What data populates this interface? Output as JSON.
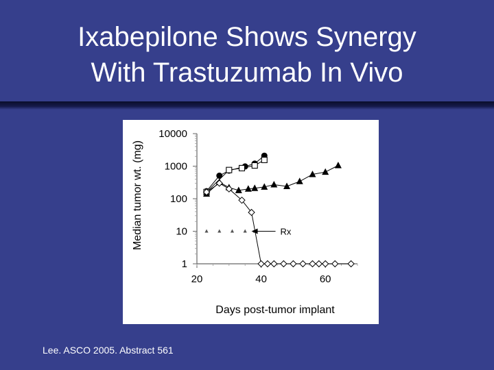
{
  "slide": {
    "title_line1": "Ixabepilone Shows Synergy",
    "title_line2": "With Trastuzumab In Vivo",
    "citation": "Lee. ASCO 2005. Abstract 561",
    "background_color": "#363F8C",
    "text_color": "#FFFFFF"
  },
  "chart_data": {
    "type": "scatter",
    "xlabel": "Days post-tumor implant",
    "ylabel": "Median tumor wt. (mg)",
    "yscale": "log",
    "ylim": [
      1,
      10000
    ],
    "xlim": [
      20,
      70
    ],
    "x_ticks": [
      "20",
      "40",
      "60"
    ],
    "y_ticks": [
      "1",
      "10",
      "100",
      "1000",
      "10000"
    ],
    "grid": false,
    "series": [
      {
        "marker": "filled-circle",
        "points": [
          [
            23,
            170
          ],
          [
            27,
            510
          ],
          [
            30,
            730
          ],
          [
            35,
            980
          ],
          [
            38,
            1200
          ],
          [
            41,
            2100
          ]
        ]
      },
      {
        "marker": "open-square",
        "points": [
          [
            23,
            160
          ],
          [
            30,
            760
          ],
          [
            34,
            870
          ],
          [
            38,
            1050
          ],
          [
            41,
            1550
          ]
        ]
      },
      {
        "marker": "filled-triangle",
        "points": [
          [
            23,
            140
          ],
          [
            27,
            320
          ],
          [
            30,
            220
          ],
          [
            33,
            180
          ],
          [
            36,
            200
          ],
          [
            38,
            210
          ],
          [
            41,
            230
          ],
          [
            44,
            270
          ],
          [
            48,
            240
          ],
          [
            52,
            340
          ],
          [
            56,
            560
          ],
          [
            60,
            660
          ],
          [
            64,
            1050
          ]
        ]
      },
      {
        "marker": "open-diamond",
        "points": [
          [
            23,
            160
          ],
          [
            27,
            300
          ],
          [
            30,
            200
          ],
          [
            34,
            90
          ],
          [
            37,
            38
          ],
          [
            40,
            1
          ],
          [
            42,
            1
          ],
          [
            44,
            1
          ],
          [
            47,
            1
          ],
          [
            50,
            1
          ],
          [
            53,
            1
          ],
          [
            56,
            1
          ],
          [
            58,
            1
          ],
          [
            60,
            1
          ],
          [
            63,
            1
          ],
          [
            68,
            1
          ]
        ]
      },
      {
        "marker": "small-triangle-dose",
        "points": [
          [
            23,
            10
          ],
          [
            27,
            10
          ],
          [
            31,
            10
          ],
          [
            35,
            10
          ],
          [
            38,
            10
          ]
        ]
      }
    ],
    "annotations": [
      {
        "text": "Rx",
        "arrow_to": [
          37,
          10
        ]
      }
    ]
  }
}
